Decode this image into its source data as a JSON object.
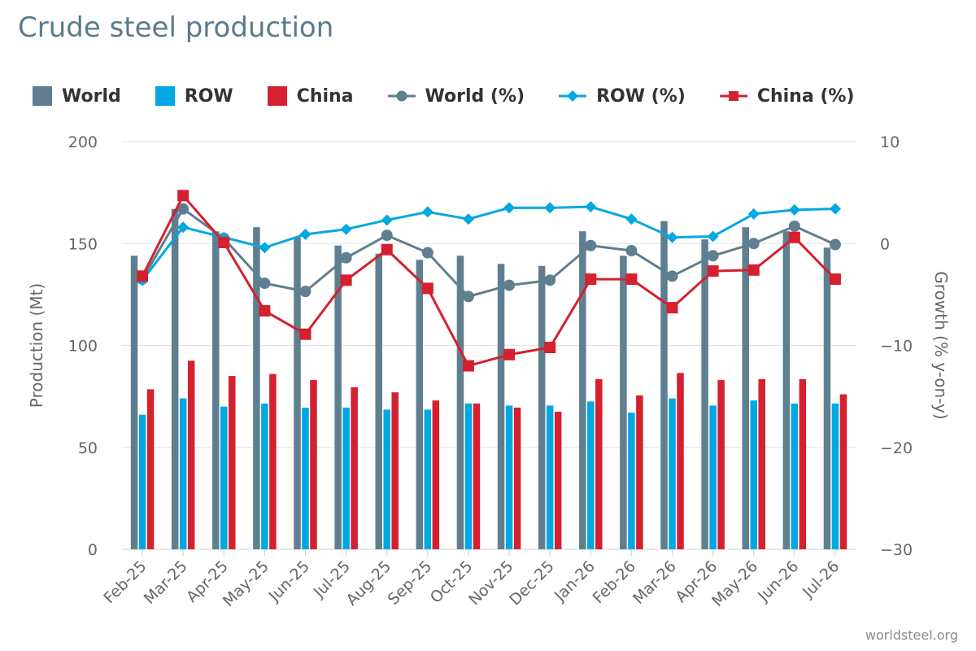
{
  "page": {
    "title": "Crude steel production",
    "credit": "worldsteel.org"
  },
  "legend": [
    {
      "label": "World",
      "type": "bar",
      "color": "#5e7f90"
    },
    {
      "label": "ROW",
      "type": "bar",
      "color": "#00a8e1"
    },
    {
      "label": "China",
      "type": "bar",
      "color": "#d4202f"
    },
    {
      "label": "World (%)",
      "type": "line",
      "marker": "circle",
      "color": "#5e7f90"
    },
    {
      "label": "ROW (%)",
      "type": "line",
      "marker": "diamond",
      "color": "#00a8e1"
    },
    {
      "label": "China (%)",
      "type": "line",
      "marker": "square",
      "color": "#d4202f"
    }
  ],
  "chart_data": {
    "type": "bar",
    "title": "Crude steel production",
    "categories": [
      "Feb-25",
      "Mar-25",
      "Apr-25",
      "May-25",
      "Jun-25",
      "Jul-25",
      "Aug-25",
      "Sep-25",
      "Oct-25",
      "Nov-25",
      "Dec-25",
      "Jan-26",
      "Feb-26",
      "Mar-26",
      "Apr-26",
      "May-26",
      "Jun-26",
      "Jul-26"
    ],
    "ylabel": "Production (Mt)",
    "y2label": "Growth (% y-on-y)",
    "ylim": [
      0,
      200
    ],
    "y2lim": [
      -30,
      10
    ],
    "yticks": [
      "0",
      "50",
      "100",
      "150",
      "200"
    ],
    "y2ticks": [
      "−30",
      "−20",
      "−10",
      "0",
      "10"
    ],
    "grid": true,
    "legend_position": "top",
    "series": [
      {
        "name": "World",
        "type": "bar",
        "axis": "left",
        "color": "#5e7f90",
        "values": [
          144,
          167,
          156,
          158,
          153,
          149,
          145,
          142,
          144,
          140,
          139,
          156,
          144,
          161,
          152,
          158,
          156,
          148
        ]
      },
      {
        "name": "ROW",
        "type": "bar",
        "axis": "left",
        "color": "#00a8e1",
        "values": [
          66,
          74,
          70,
          71.5,
          69.5,
          69.5,
          68.5,
          68.5,
          71.5,
          70.5,
          70.5,
          72.5,
          67,
          74,
          70.5,
          73,
          71.5,
          71.5
        ]
      },
      {
        "name": "China",
        "type": "bar",
        "axis": "left",
        "color": "#d4202f",
        "values": [
          78.5,
          92.5,
          85,
          86,
          83,
          79.5,
          77,
          73,
          71.5,
          69.5,
          67.5,
          83.5,
          75.5,
          86.5,
          83,
          83.5,
          83.5,
          76
        ]
      },
      {
        "name": "World (%)",
        "type": "line",
        "marker": "circle",
        "axis": "right",
        "color": "#5e7f90",
        "values": [
          -3.5,
          3.4,
          0.5,
          -3.9,
          -4.7,
          -1.4,
          0.8,
          -0.9,
          -5.2,
          -4.1,
          -3.6,
          -0.2,
          -0.7,
          -3.2,
          -1.2,
          0.0,
          1.7,
          -0.1
        ]
      },
      {
        "name": "ROW (%)",
        "type": "line",
        "marker": "diamond",
        "axis": "right",
        "color": "#00a8e1",
        "values": [
          -3.6,
          1.6,
          0.6,
          -0.4,
          0.9,
          1.4,
          2.3,
          3.1,
          2.4,
          3.5,
          3.5,
          3.6,
          2.4,
          0.6,
          0.7,
          2.9,
          3.3,
          3.4
        ]
      },
      {
        "name": "China (%)",
        "type": "line",
        "marker": "square",
        "axis": "right",
        "color": "#d4202f",
        "values": [
          -3.2,
          4.7,
          0.1,
          -6.6,
          -8.9,
          -3.6,
          -0.6,
          -4.4,
          -12.0,
          -10.9,
          -10.2,
          -3.5,
          -3.5,
          -6.3,
          -2.7,
          -2.6,
          0.6,
          -3.5
        ]
      }
    ]
  }
}
